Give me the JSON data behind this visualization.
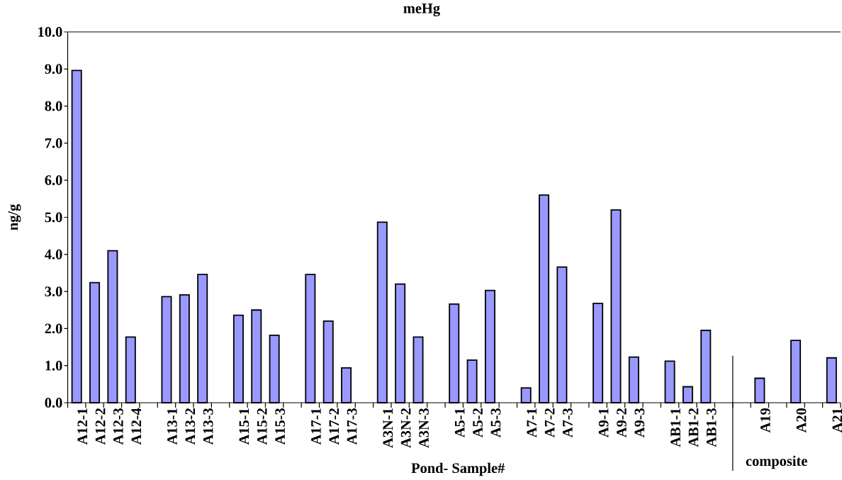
{
  "chart_data": {
    "type": "bar",
    "title": "meHg",
    "xlabel": "Pond- Sample#",
    "ylabel": "ng/g",
    "categories": [
      "A12-1",
      "A12-2",
      "A12-3",
      "A12-4",
      null,
      "A13-1",
      "A13-2",
      "A13-3",
      null,
      "A15-1",
      "A15-2",
      "A15-3",
      null,
      "A17-1",
      "A17-2",
      "A17-3",
      null,
      "A3N-1",
      "A3N-2",
      "A3N-3",
      null,
      "A5-1",
      "A5-2",
      "A5-3",
      null,
      "A7-1",
      "A7-2",
      "A7-3",
      null,
      "A9-1",
      "A9-2",
      "A9-3",
      null,
      "AB1-1",
      "AB1-2",
      "AB1-3",
      null,
      null,
      "A19",
      null,
      "A20",
      null,
      "A21"
    ],
    "values": [
      8.96,
      3.24,
      4.1,
      1.77,
      null,
      2.86,
      2.91,
      3.46,
      null,
      2.36,
      2.5,
      1.82,
      null,
      3.46,
      2.2,
      0.94,
      null,
      4.87,
      3.2,
      1.77,
      null,
      2.66,
      1.15,
      3.03,
      null,
      0.4,
      5.6,
      3.66,
      null,
      2.68,
      5.2,
      1.23,
      null,
      1.12,
      0.43,
      1.95,
      null,
      null,
      0.66,
      null,
      1.68,
      null,
      1.21
    ],
    "color": "#9999ff",
    "ylim": [
      0,
      10
    ],
    "yticks": [
      {
        "value": 0,
        "label": "0.0"
      },
      {
        "value": 1,
        "label": "1.0"
      },
      {
        "value": 2,
        "label": "2.0"
      },
      {
        "value": 3,
        "label": "3.0"
      },
      {
        "value": 4,
        "label": "4.0"
      },
      {
        "value": 5,
        "label": "5.0"
      },
      {
        "value": 6,
        "label": "6.0"
      },
      {
        "value": 7,
        "label": "7.0"
      },
      {
        "value": 8,
        "label": "8.0"
      },
      {
        "value": 9,
        "label": "9.0"
      },
      {
        "value": 10,
        "label": "10.0"
      }
    ],
    "annotations": [
      "composite"
    ]
  }
}
